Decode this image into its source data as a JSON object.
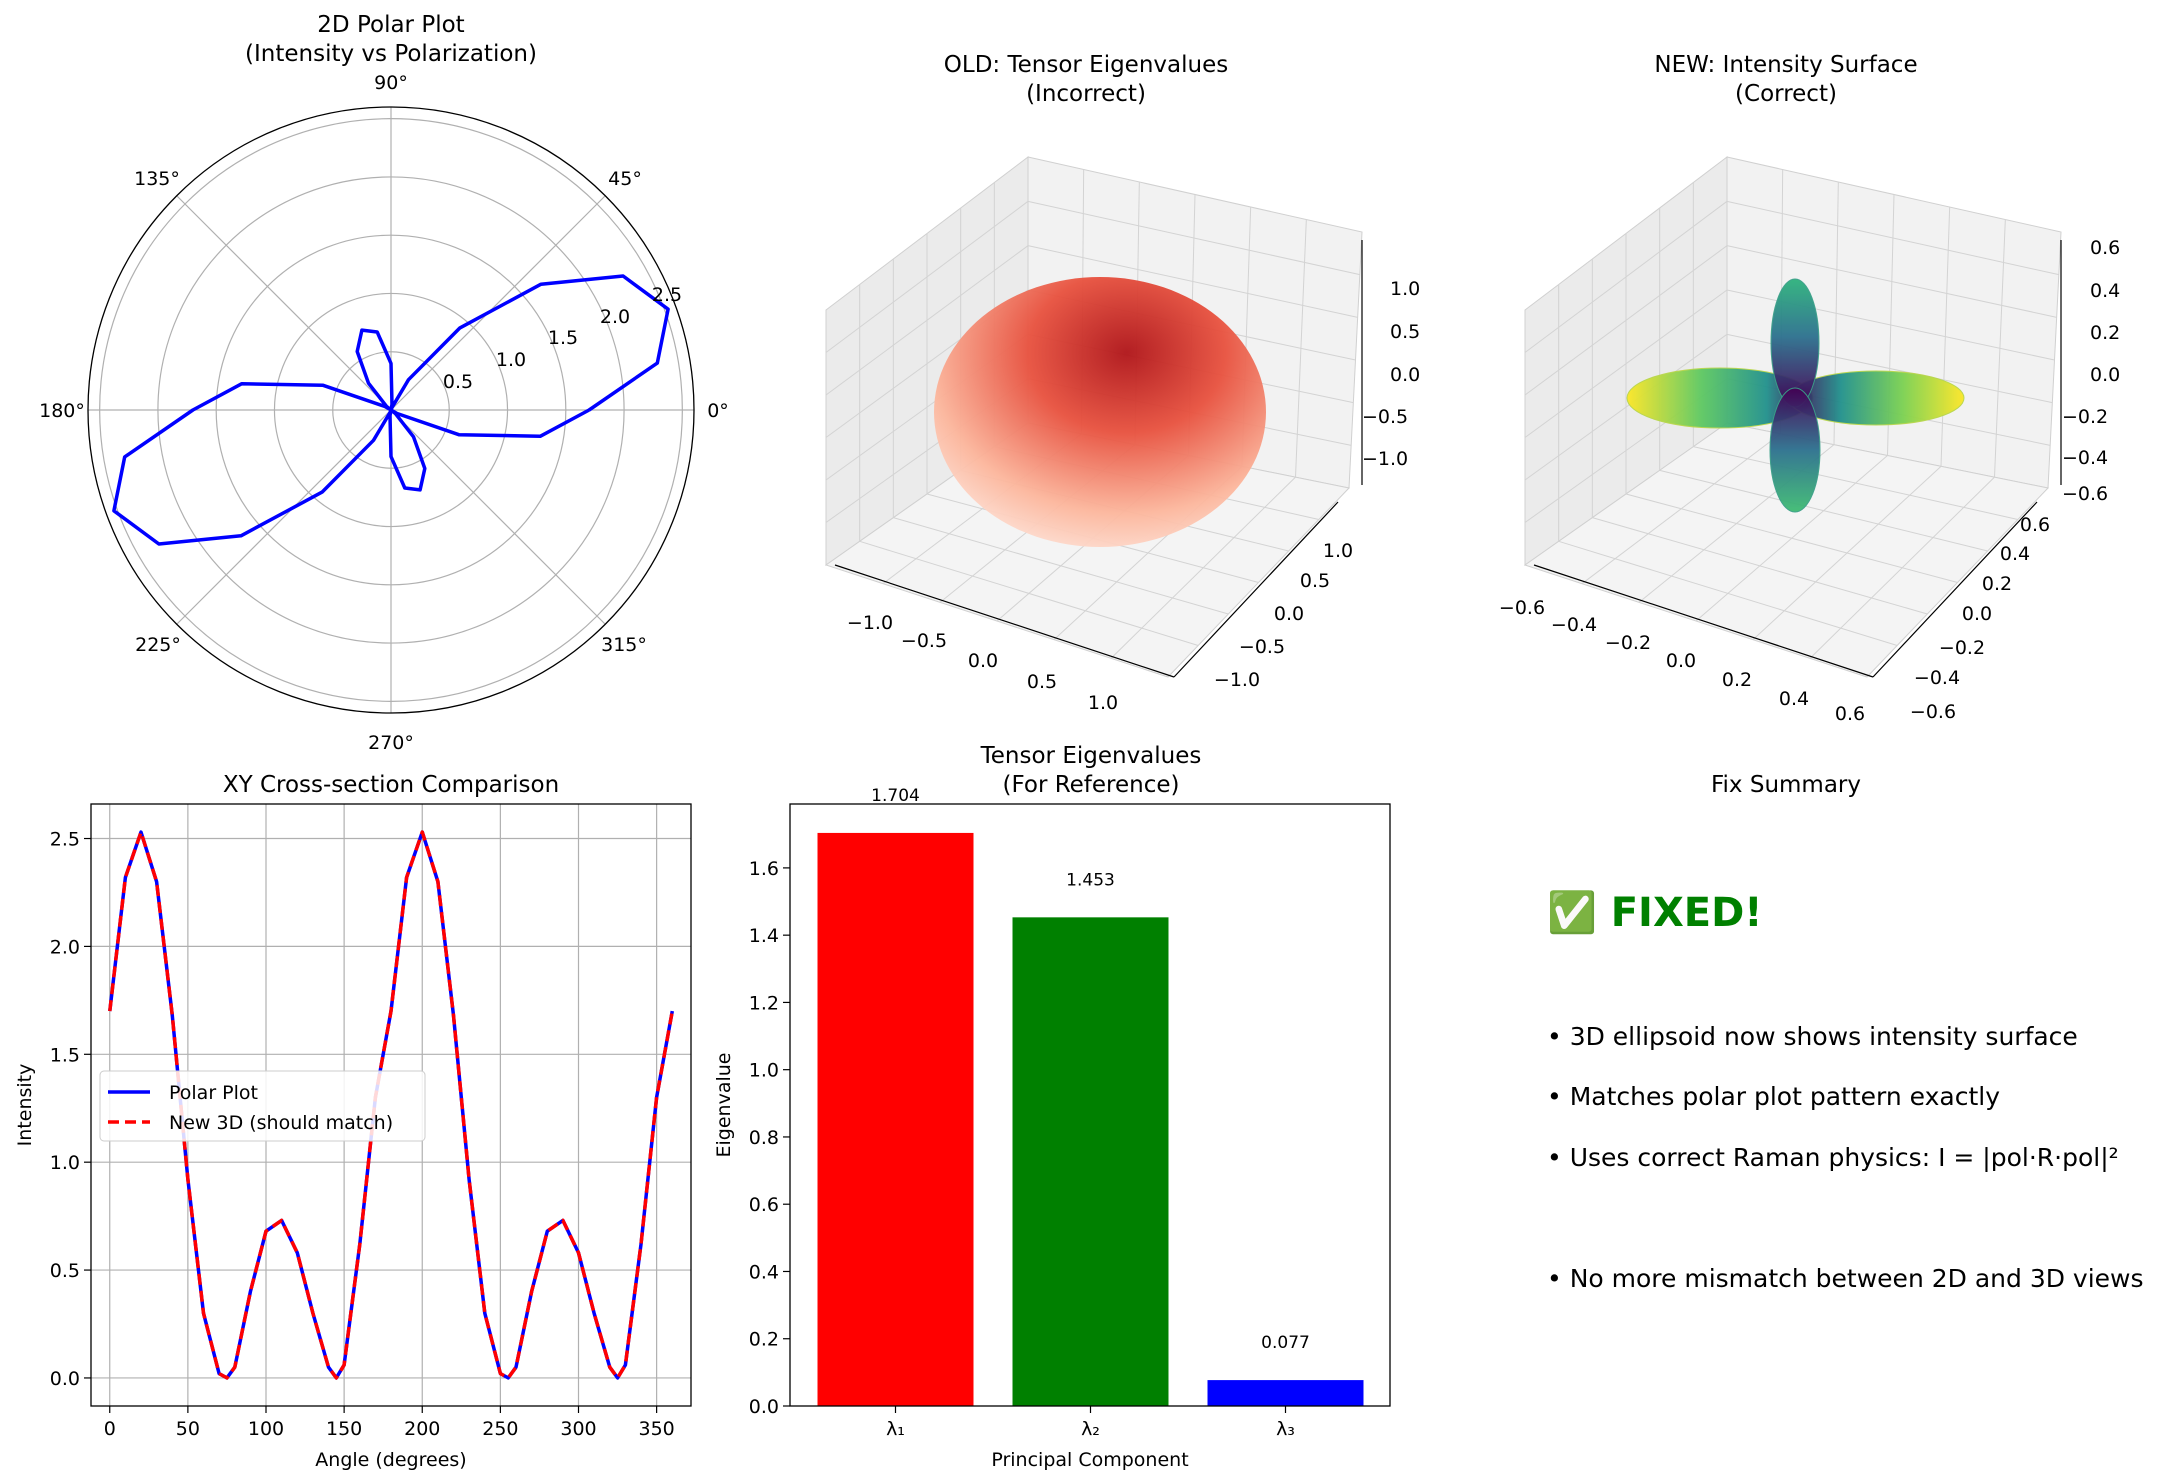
{
  "figure": {
    "panels": {
      "polar": {
        "title_line1": "2D Polar Plot",
        "title_line2": "(Intensity vs Polarization)",
        "angle_labels": [
          "0°",
          "45°",
          "90°",
          "135°",
          "180°",
          "225°",
          "270°",
          "315°"
        ],
        "radial_labels": [
          "0.5",
          "1.0",
          "1.5",
          "2.0",
          "2.5"
        ]
      },
      "old3d": {
        "title_line1": "OLD: Tensor Eigenvalues",
        "title_line2": "(Incorrect)",
        "x_ticks": [
          "−1.0",
          "−0.5",
          "0.0",
          "0.5",
          "1.0"
        ],
        "y_ticks": [
          "−1.0",
          "−0.5",
          "0.0",
          "0.5",
          "1.0"
        ],
        "z_ticks": [
          "1.0",
          "0.5",
          "0.0",
          "−0.5",
          "−1.0"
        ]
      },
      "new3d": {
        "title_line1": "NEW: Intensity Surface",
        "title_line2": "(Correct)",
        "x_ticks": [
          "−0.6",
          "−0.4",
          "−0.2",
          "0.0",
          "0.2",
          "0.4",
          "0.6"
        ],
        "y_ticks": [
          "−0.6",
          "−0.4",
          "−0.2",
          "0.0",
          "0.2",
          "0.4",
          "0.6"
        ],
        "z_ticks": [
          "0.6",
          "0.4",
          "0.2",
          "0.0",
          "−0.2",
          "−0.4",
          "−0.6"
        ]
      },
      "xy": {
        "title": "XY Cross-section Comparison",
        "xlabel": "Angle (degrees)",
        "ylabel": "Intensity"
      },
      "eig": {
        "title_line1": "Tensor Eigenvalues",
        "title_line2": "(For Reference)",
        "xlabel": "Principal Component",
        "ylabel": "Eigenvalue"
      },
      "summary": {
        "title": "Fix Summary",
        "heading": "✅ FIXED!",
        "heading_color": "#008000",
        "lines": [
          "• 3D ellipsoid now shows intensity surface",
          "• Matches polar plot pattern exactly",
          "• Uses correct Raman physics: I = |pol·R·pol|²",
          "• No more mismatch between 2D and 3D views"
        ]
      }
    }
  },
  "chart_data": [
    {
      "type": "line",
      "subtype": "polar",
      "title": "2D Polar Plot\n(Intensity vs Polarization)",
      "theta_unit": "degrees",
      "rlim": [
        0,
        2.6
      ],
      "r_ticks": [
        0.5,
        1.0,
        1.5,
        2.0,
        2.5
      ],
      "theta_ticks": [
        0,
        45,
        90,
        135,
        180,
        225,
        270,
        315
      ],
      "grid": true,
      "series": [
        {
          "color": "#0000ff",
          "theta": [
            0,
            10,
            20,
            30,
            40,
            50,
            60,
            70,
            75,
            80,
            90,
            100,
            110,
            120,
            130,
            140,
            145,
            150,
            160,
            170,
            180,
            190,
            200,
            210,
            220,
            230,
            240,
            250,
            255,
            260,
            270,
            280,
            290,
            300,
            310,
            320,
            325,
            330,
            340,
            350,
            360
          ],
          "r": [
            1.7,
            2.32,
            2.53,
            2.3,
            1.68,
            0.92,
            0.3,
            0.02,
            0.0,
            0.05,
            0.4,
            0.68,
            0.73,
            0.58,
            0.3,
            0.05,
            0.0,
            0.06,
            0.62,
            1.3,
            1.7,
            2.32,
            2.53,
            2.3,
            1.68,
            0.92,
            0.3,
            0.02,
            0.0,
            0.05,
            0.4,
            0.68,
            0.73,
            0.58,
            0.3,
            0.05,
            0.0,
            0.06,
            0.62,
            1.3,
            1.7
          ]
        }
      ]
    },
    {
      "type": "surface3d",
      "title": "OLD: Tensor Eigenvalues\n(Incorrect)",
      "shape": "ellipsoid",
      "colormap": "Reds",
      "xlim": [
        -1.3,
        1.3
      ],
      "ylim": [
        -1.3,
        1.3
      ],
      "zlim": [
        -1.3,
        1.3
      ],
      "x_ticks": [
        -1.0,
        -0.5,
        0.0,
        0.5,
        1.0
      ],
      "y_ticks": [
        -1.0,
        -0.5,
        0.0,
        0.5,
        1.0
      ],
      "z_ticks": [
        -1.0,
        -0.5,
        0.0,
        0.5,
        1.0
      ]
    },
    {
      "type": "surface3d",
      "title": "NEW: Intensity Surface\n(Correct)",
      "shape": "four-lobed intensity surface",
      "colormap": "viridis",
      "xlim": [
        -0.6,
        0.6
      ],
      "ylim": [
        -0.6,
        0.6
      ],
      "zlim": [
        -0.6,
        0.6
      ],
      "x_ticks": [
        -0.6,
        -0.4,
        -0.2,
        0.0,
        0.2,
        0.4,
        0.6
      ],
      "y_ticks": [
        -0.6,
        -0.4,
        -0.2,
        0.0,
        0.2,
        0.4,
        0.6
      ],
      "z_ticks": [
        -0.6,
        -0.4,
        -0.2,
        0.0,
        0.2,
        0.4,
        0.6
      ]
    },
    {
      "type": "line",
      "title": "XY Cross-section Comparison",
      "xlabel": "Angle (degrees)",
      "ylabel": "Intensity",
      "xlim": [
        -12,
        372
      ],
      "ylim": [
        -0.13,
        2.66
      ],
      "x_ticks": [
        0,
        50,
        100,
        150,
        200,
        250,
        300,
        350
      ],
      "y_ticks": [
        0.0,
        0.5,
        1.0,
        1.5,
        2.0,
        2.5
      ],
      "grid": true,
      "legend": "center-left",
      "x": [
        0,
        10,
        20,
        30,
        40,
        50,
        60,
        70,
        75,
        80,
        90,
        100,
        110,
        120,
        130,
        140,
        145,
        150,
        160,
        170,
        180,
        190,
        200,
        210,
        220,
        230,
        240,
        250,
        255,
        260,
        270,
        280,
        290,
        300,
        310,
        320,
        325,
        330,
        340,
        350,
        360
      ],
      "series": [
        {
          "name": "Polar Plot",
          "color": "#0000ff",
          "style": "solid",
          "values": [
            1.7,
            2.32,
            2.53,
            2.3,
            1.68,
            0.92,
            0.3,
            0.02,
            0.0,
            0.05,
            0.4,
            0.68,
            0.73,
            0.58,
            0.3,
            0.05,
            0.0,
            0.06,
            0.62,
            1.3,
            1.7,
            2.32,
            2.53,
            2.3,
            1.68,
            0.92,
            0.3,
            0.02,
            0.0,
            0.05,
            0.4,
            0.68,
            0.73,
            0.58,
            0.3,
            0.05,
            0.0,
            0.06,
            0.62,
            1.3,
            1.7
          ]
        },
        {
          "name": "New 3D (should match)",
          "color": "#ff0000",
          "style": "dashed",
          "values": [
            1.7,
            2.32,
            2.53,
            2.3,
            1.68,
            0.92,
            0.3,
            0.02,
            0.0,
            0.05,
            0.4,
            0.68,
            0.73,
            0.58,
            0.3,
            0.05,
            0.0,
            0.06,
            0.62,
            1.3,
            1.7,
            2.32,
            2.53,
            2.3,
            1.68,
            0.92,
            0.3,
            0.02,
            0.0,
            0.05,
            0.4,
            0.68,
            0.73,
            0.58,
            0.3,
            0.05,
            0.0,
            0.06,
            0.62,
            1.3,
            1.7
          ]
        }
      ]
    },
    {
      "type": "bar",
      "title": "Tensor Eigenvalues\n(For Reference)",
      "xlabel": "Principal Component",
      "ylabel": "Eigenvalue",
      "categories": [
        "λ₁",
        "λ₂",
        "λ₃"
      ],
      "values": [
        1.704,
        1.453,
        0.077
      ],
      "value_labels": [
        "1.704",
        "1.453",
        "0.077"
      ],
      "colors": [
        "#ff0000",
        "#008000",
        "#0000ff"
      ],
      "ylim": [
        0,
        1.79
      ],
      "y_ticks": [
        0.0,
        0.2,
        0.4,
        0.6,
        0.8,
        1.0,
        1.2,
        1.4,
        1.6
      ]
    }
  ]
}
